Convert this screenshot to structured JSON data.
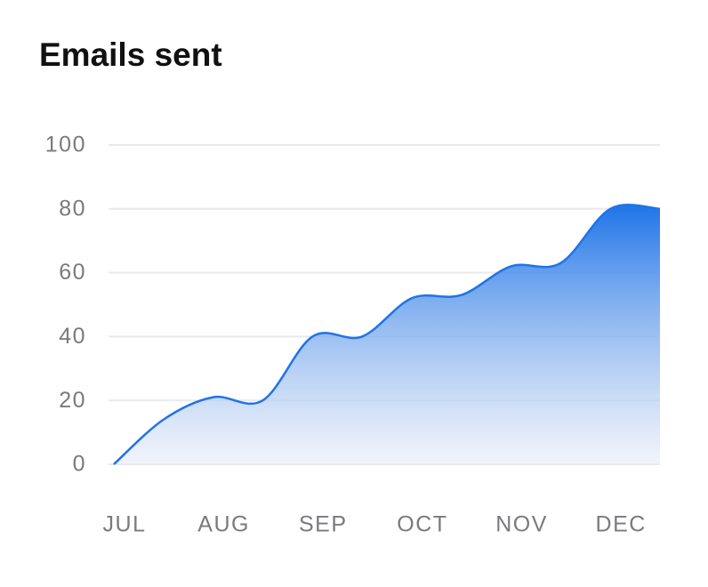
{
  "chart_data": {
    "type": "area",
    "title": "Emails sent",
    "categories": [
      "JUL",
      null,
      "AUG",
      null,
      "SEP",
      null,
      "OCT",
      null,
      "NOV",
      null,
      "DEC",
      null
    ],
    "series": [
      {
        "name": "Emails",
        "color": "#1f74e8",
        "values": [
          0,
          14,
          21,
          20,
          40,
          40,
          52,
          53,
          62,
          63,
          80,
          80
        ]
      }
    ],
    "ylim": [
      0,
      100
    ],
    "yticks": [
      0,
      20,
      40,
      60,
      80,
      100
    ],
    "grid": true
  }
}
